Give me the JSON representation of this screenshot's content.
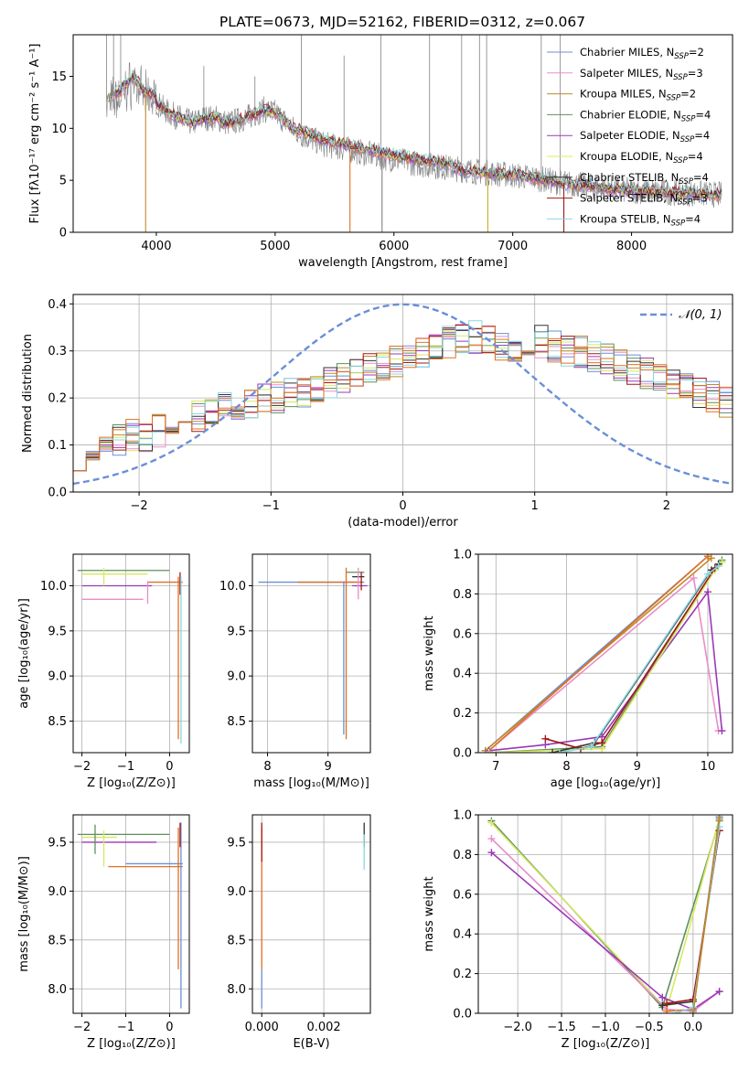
{
  "figure_title": "PLATE=0673, MJD=52162, FIBERID=0312, z=0.067",
  "legend_entries": [
    {
      "label": "Chabrier MILES, N",
      "sub": "SSP",
      "value": "=2",
      "color": "#6a8fd8"
    },
    {
      "label": "Salpeter MILES, N",
      "sub": "SSP",
      "value": "=3",
      "color": "#e88ec8"
    },
    {
      "label": "Kroupa MILES, N",
      "sub": "SSP",
      "value": "=2",
      "color": "#c08a2a"
    },
    {
      "label": "Chabrier ELODIE, N",
      "sub": "SSP",
      "value": "=4",
      "color": "#5f8f5f"
    },
    {
      "label": "Salpeter ELODIE, N",
      "sub": "SSP",
      "value": "=4",
      "color": "#9a38b8"
    },
    {
      "label": "Kroupa ELODIE, N",
      "sub": "SSP",
      "value": "=4",
      "color": "#d8e860"
    },
    {
      "label": "Chabrier STELIB, N",
      "sub": "SSP",
      "value": "=4",
      "color": "#333333"
    },
    {
      "label": "Salpeter STELIB, N",
      "sub": "SSP",
      "value": "=3",
      "color": "#a01818"
    },
    {
      "label": "Kroupa STELIB, N",
      "sub": "SSP",
      "value": "=4",
      "color": "#88d8e0"
    }
  ],
  "chart_data": [
    {
      "id": "spectrum",
      "type": "line",
      "xlabel": "wavelength [Angstrom, rest frame]",
      "ylabel": "Flux [fλ10⁻¹⁷ erg cm⁻² s⁻¹ A⁻¹]",
      "xlim": [
        3300,
        8850
      ],
      "ylim": [
        0,
        19
      ],
      "xticks": [
        4000,
        5000,
        6000,
        7000,
        8000
      ],
      "yticks": [
        0,
        5,
        10,
        15
      ],
      "grid": false,
      "legend_position": "upper right",
      "data_color": "#808080",
      "model_knots": {
        "x": [
          3600,
          3700,
          3800,
          3900,
          4000,
          4100,
          4200,
          4300,
          4400,
          4500,
          4600,
          4700,
          4800,
          4900,
          5000,
          5200,
          5400,
          5600,
          5800,
          6000,
          6200,
          6400,
          6600,
          6800,
          7000,
          7200,
          7400,
          7600,
          7800,
          8000,
          8200,
          8400,
          8600,
          8750
        ],
        "y": [
          12.5,
          13.0,
          14.5,
          13.0,
          12.5,
          11.5,
          11.0,
          10.5,
          11.0,
          11.0,
          10.5,
          10.8,
          11.2,
          11.8,
          11.5,
          9.5,
          8.5,
          8.0,
          7.5,
          7.0,
          6.6,
          6.3,
          6.0,
          5.7,
          5.5,
          5.2,
          4.8,
          4.5,
          4.2,
          4.0,
          3.9,
          3.8,
          3.7,
          3.6
        ]
      },
      "spikes": [
        {
          "x": 3580,
          "y": 19
        },
        {
          "x": 3640,
          "y": 19
        },
        {
          "x": 3700,
          "y": 19
        },
        {
          "x": 4400,
          "y": 16
        },
        {
          "x": 4830,
          "y": 15
        },
        {
          "x": 5220,
          "y": 19
        },
        {
          "x": 5580,
          "y": 17
        },
        {
          "x": 5890,
          "y": 19
        },
        {
          "x": 6300,
          "y": 19
        },
        {
          "x": 6570,
          "y": 19
        },
        {
          "x": 6720,
          "y": 19
        },
        {
          "x": 6780,
          "y": 19
        },
        {
          "x": 7240,
          "y": 19
        },
        {
          "x": 7400,
          "y": 19
        }
      ],
      "dips": [
        {
          "x": 3910,
          "y": 0,
          "color": "#c08a2a"
        },
        {
          "x": 5630,
          "y": 0,
          "color": "#e07020"
        },
        {
          "x": 5900,
          "y": 0,
          "color": "#808080"
        },
        {
          "x": 6790,
          "y": 0,
          "color": "#c0b020"
        },
        {
          "x": 7430,
          "y": 0,
          "color": "#a01818"
        }
      ]
    },
    {
      "id": "residuals",
      "type": "line",
      "xlabel": "(data-model)/error",
      "ylabel": "Normed distribution",
      "xlim": [
        -2.5,
        2.5
      ],
      "ylim": [
        0,
        0.42
      ],
      "xticks": [
        -2,
        -1,
        0,
        1,
        2
      ],
      "yticks": [
        0.0,
        0.1,
        0.2,
        0.3,
        0.4
      ],
      "grid": true,
      "legend_position": "upper right",
      "legend_label": "𝒩(0, 1)",
      "gaussian": {
        "mean": 0,
        "sigma": 1,
        "color": "#6a8fd8"
      },
      "bin_width": 0.1,
      "bin_start": -2.5,
      "base_hist": [
        0.08,
        0.09,
        0.1,
        0.11,
        0.12,
        0.12,
        0.13,
        0.14,
        0.15,
        0.16,
        0.17,
        0.18,
        0.18,
        0.19,
        0.2,
        0.2,
        0.21,
        0.21,
        0.22,
        0.23,
        0.24,
        0.25,
        0.26,
        0.27,
        0.28,
        0.29,
        0.3,
        0.31,
        0.32,
        0.33,
        0.33,
        0.32,
        0.31,
        0.31,
        0.32,
        0.32,
        0.31,
        0.3,
        0.3,
        0.29,
        0.28,
        0.27,
        0.26,
        0.25,
        0.24,
        0.23,
        0.22,
        0.21,
        0.2,
        0.19
      ]
    },
    {
      "id": "age-vs-Z",
      "type": "scatter",
      "xlabel": "Z [log₁₀(Z/Z⊙)]",
      "ylabel": "age  [log₁₀(age/yr)]",
      "xlim": [
        -2.2,
        0.45
      ],
      "ylim": [
        8.15,
        10.35
      ],
      "xticks": [
        -2,
        -1,
        0
      ],
      "yticks": [
        8.5,
        9.0,
        9.5,
        10.0
      ],
      "grid": true,
      "hlines": [
        {
          "y": 10.17,
          "x1": -2.1,
          "x2": 0.0,
          "color": "#5f8f5f"
        },
        {
          "y": 10.13,
          "x1": -2.0,
          "x2": -0.5,
          "color": "#d8e860"
        },
        {
          "y": 10.04,
          "x1": -0.5,
          "x2": 0.3,
          "color": "#e07020"
        },
        {
          "y": 10.0,
          "x1": -2.0,
          "x2": -0.4,
          "color": "#9a38b8"
        },
        {
          "y": 9.85,
          "x1": -2.0,
          "x2": -0.6,
          "color": "#e88ec8"
        }
      ],
      "vlines": [
        {
          "x": 0.2,
          "y1": 8.3,
          "y2": 10.1,
          "color": "#e07020"
        },
        {
          "x": 0.24,
          "y1": 9.9,
          "y2": 10.15,
          "color": "#a01818"
        },
        {
          "x": 0.26,
          "y1": 8.25,
          "y2": 10.1,
          "color": "#88d8e0"
        },
        {
          "x": -1.5,
          "y1": 10.0,
          "y2": 10.2,
          "color": "#d8e860"
        },
        {
          "x": -0.5,
          "y1": 9.8,
          "y2": 10.05,
          "color": "#e88ec8"
        }
      ]
    },
    {
      "id": "age-vs-mass",
      "type": "scatter",
      "xlabel": "mass [log₁₀(M/M⊙)]",
      "ylabel": "",
      "xlim": [
        7.75,
        9.7
      ],
      "ylim": [
        8.15,
        10.35
      ],
      "xticks": [
        8,
        9
      ],
      "yticks": [
        8.5,
        9.0,
        9.5,
        10.0
      ],
      "grid": true,
      "hlines": [
        {
          "y": 10.04,
          "x1": 7.85,
          "x2": 9.6,
          "color": "#6a8fd8"
        },
        {
          "y": 10.04,
          "x1": 8.5,
          "x2": 9.55,
          "color": "#e07020"
        },
        {
          "y": 10.15,
          "x1": 9.3,
          "x2": 9.6,
          "color": "#5f8f5f"
        },
        {
          "y": 10.0,
          "x1": 9.4,
          "x2": 9.65,
          "color": "#9a38b8"
        },
        {
          "y": 10.1,
          "x1": 9.4,
          "x2": 9.6,
          "color": "#333333"
        }
      ],
      "vlines": [
        {
          "x": 9.26,
          "y1": 8.35,
          "y2": 10.05,
          "color": "#6a8fd8"
        },
        {
          "x": 9.3,
          "y1": 8.3,
          "y2": 10.2,
          "color": "#e07020"
        },
        {
          "x": 9.5,
          "y1": 9.85,
          "y2": 10.2,
          "color": "#e88ec8"
        },
        {
          "x": 9.55,
          "y1": 9.95,
          "y2": 10.15,
          "color": "#a01818"
        }
      ]
    },
    {
      "id": "weight-vs-age",
      "type": "line",
      "xlabel": "age  [log₁₀(age/yr)]",
      "ylabel": "mass weight",
      "xlim": [
        6.75,
        10.35
      ],
      "ylim": [
        0,
        1
      ],
      "xticks": [
        7,
        8,
        9,
        10
      ],
      "yticks": [
        0.0,
        0.2,
        0.4,
        0.6,
        0.8,
        1.0
      ],
      "grid": true,
      "series": [
        {
          "color": "#6a8fd8",
          "x": [
            6.85,
            10.0
          ],
          "y": [
            0.01,
            0.99
          ]
        },
        {
          "color": "#e88ec8",
          "x": [
            6.9,
            9.8,
            10.15
          ],
          "y": [
            0.01,
            0.88,
            0.11
          ]
        },
        {
          "color": "#c08a2a",
          "x": [
            6.85,
            10.05
          ],
          "y": [
            0.01,
            0.98
          ]
        },
        {
          "color": "#e07020",
          "x": [
            6.9,
            10.0
          ],
          "y": [
            0.01,
            0.99
          ]
        },
        {
          "color": "#5f8f5f",
          "x": [
            6.9,
            8.5,
            10.1,
            10.2
          ],
          "y": [
            0.0,
            0.03,
            0.93,
            0.97
          ]
        },
        {
          "color": "#9a38b8",
          "x": [
            6.9,
            7.7,
            8.5,
            10.0,
            10.2
          ],
          "y": [
            0.01,
            0.04,
            0.08,
            0.81,
            0.11
          ]
        },
        {
          "color": "#d8e860",
          "x": [
            6.9,
            8.5,
            10.1,
            10.2
          ],
          "y": [
            0.0,
            0.02,
            0.92,
            0.96
          ]
        },
        {
          "color": "#333333",
          "x": [
            7.8,
            8.4,
            10.05,
            10.15
          ],
          "y": [
            0.0,
            0.05,
            0.92,
            0.95
          ]
        },
        {
          "color": "#a01818",
          "x": [
            7.7,
            8.2,
            8.5,
            10.1
          ],
          "y": [
            0.07,
            0.02,
            0.05,
            0.93
          ]
        },
        {
          "color": "#88d8e0",
          "x": [
            7.9,
            8.35,
            10.0,
            10.15
          ],
          "y": [
            0.0,
            0.03,
            0.9,
            0.94
          ]
        }
      ]
    },
    {
      "id": "mass-vs-Z",
      "type": "scatter",
      "xlabel": "Z [log₁₀(Z/Z⊙)]",
      "ylabel": "mass [log₁₀(M/M⊙)]",
      "xlim": [
        -2.2,
        0.45
      ],
      "ylim": [
        7.75,
        9.78
      ],
      "xticks": [
        -2,
        -1,
        0
      ],
      "yticks": [
        8.0,
        8.5,
        9.0,
        9.5
      ],
      "grid": true,
      "hlines": [
        {
          "y": 9.58,
          "x1": -2.1,
          "x2": 0.0,
          "color": "#5f8f5f"
        },
        {
          "y": 9.55,
          "x1": -2.0,
          "x2": -1.2,
          "color": "#d8e860"
        },
        {
          "y": 9.5,
          "x1": -2.0,
          "x2": -0.3,
          "color": "#9a38b8"
        },
        {
          "y": 9.28,
          "x1": -1.0,
          "x2": 0.3,
          "color": "#6a8fd8"
        },
        {
          "y": 9.25,
          "x1": -1.4,
          "x2": 0.3,
          "color": "#e07020"
        }
      ],
      "vlines": [
        {
          "x": -1.7,
          "y1": 9.38,
          "y2": 9.68,
          "color": "#5f8f5f"
        },
        {
          "x": -1.5,
          "y1": 9.25,
          "y2": 9.62,
          "color": "#d8e860"
        },
        {
          "x": 0.2,
          "y1": 8.2,
          "y2": 9.65,
          "color": "#e07020"
        },
        {
          "x": 0.26,
          "y1": 7.8,
          "y2": 9.7,
          "color": "#6a8fd8"
        },
        {
          "x": 0.24,
          "y1": 9.45,
          "y2": 9.7,
          "color": "#a01818"
        }
      ]
    },
    {
      "id": "mass-vs-EBV",
      "type": "scatter",
      "xlabel": "E(B-V)",
      "ylabel": "",
      "xlim": [
        -0.0003,
        0.0035
      ],
      "ylim": [
        7.75,
        9.78
      ],
      "xticks": [
        0.0,
        0.002
      ],
      "xtick_labels": [
        "0.000",
        "0.002"
      ],
      "yticks": [
        8.0,
        8.5,
        9.0,
        9.5
      ],
      "grid": true,
      "vlines": [
        {
          "x": 0.0,
          "y1": 7.8,
          "y2": 8.2,
          "color": "#6a8fd8"
        },
        {
          "x": 0.0,
          "y1": 8.2,
          "y2": 9.65,
          "color": "#e07020"
        },
        {
          "x": 0.0,
          "y1": 9.3,
          "y2": 9.7,
          "color": "#a01818"
        },
        {
          "x": 0.0033,
          "y1": 9.45,
          "y2": 9.7,
          "color": "#333333"
        },
        {
          "x": 0.0033,
          "y1": 9.22,
          "y2": 9.58,
          "color": "#88d8e0"
        }
      ]
    },
    {
      "id": "weight-vs-Z",
      "type": "line",
      "xlabel": "Z [log₁₀(Z/Z⊙)]",
      "ylabel": "mass weight",
      "xlim": [
        -2.45,
        0.45
      ],
      "ylim": [
        0,
        1
      ],
      "xticks": [
        -2.0,
        -1.5,
        -1.0,
        -0.5,
        0.0
      ],
      "xtick_labels": [
        "−2.0",
        "−1.5",
        "−1.0",
        "−0.5",
        "0.0"
      ],
      "yticks": [
        0.0,
        0.2,
        0.4,
        0.6,
        0.8,
        1.0
      ],
      "grid": true,
      "series": [
        {
          "color": "#5f8f5f",
          "x": [
            -2.3,
            -0.35,
            0.3
          ],
          "y": [
            0.97,
            0.03,
            0.97
          ]
        },
        {
          "color": "#d8e860",
          "x": [
            -2.3,
            -0.3,
            0.3
          ],
          "y": [
            0.96,
            0.02,
            0.98
          ]
        },
        {
          "color": "#e88ec8",
          "x": [
            -2.3,
            -0.3,
            0.0,
            0.3
          ],
          "y": [
            0.88,
            0.02,
            0.01,
            0.11
          ]
        },
        {
          "color": "#9a38b8",
          "x": [
            -2.3,
            -0.35,
            0.0,
            0.3
          ],
          "y": [
            0.81,
            0.08,
            0.02,
            0.11
          ]
        },
        {
          "color": "#e07020",
          "x": [
            -0.3,
            0.0,
            0.3
          ],
          "y": [
            0.01,
            0.02,
            0.99
          ]
        },
        {
          "color": "#6a8fd8",
          "x": [
            0.0,
            0.3
          ],
          "y": [
            0.01,
            0.99
          ]
        },
        {
          "color": "#333333",
          "x": [
            -0.35,
            0.0,
            0.3
          ],
          "y": [
            0.04,
            0.06,
            0.92
          ]
        },
        {
          "color": "#a01818",
          "x": [
            -0.3,
            0.0,
            0.3
          ],
          "y": [
            0.05,
            0.07,
            0.92
          ]
        },
        {
          "color": "#88d8e0",
          "x": [
            -0.2,
            0.0,
            0.3
          ],
          "y": [
            0.0,
            0.03,
            0.94
          ]
        },
        {
          "color": "#c08a2a",
          "x": [
            0.0,
            0.3
          ],
          "y": [
            0.0,
            0.98
          ]
        }
      ]
    }
  ]
}
